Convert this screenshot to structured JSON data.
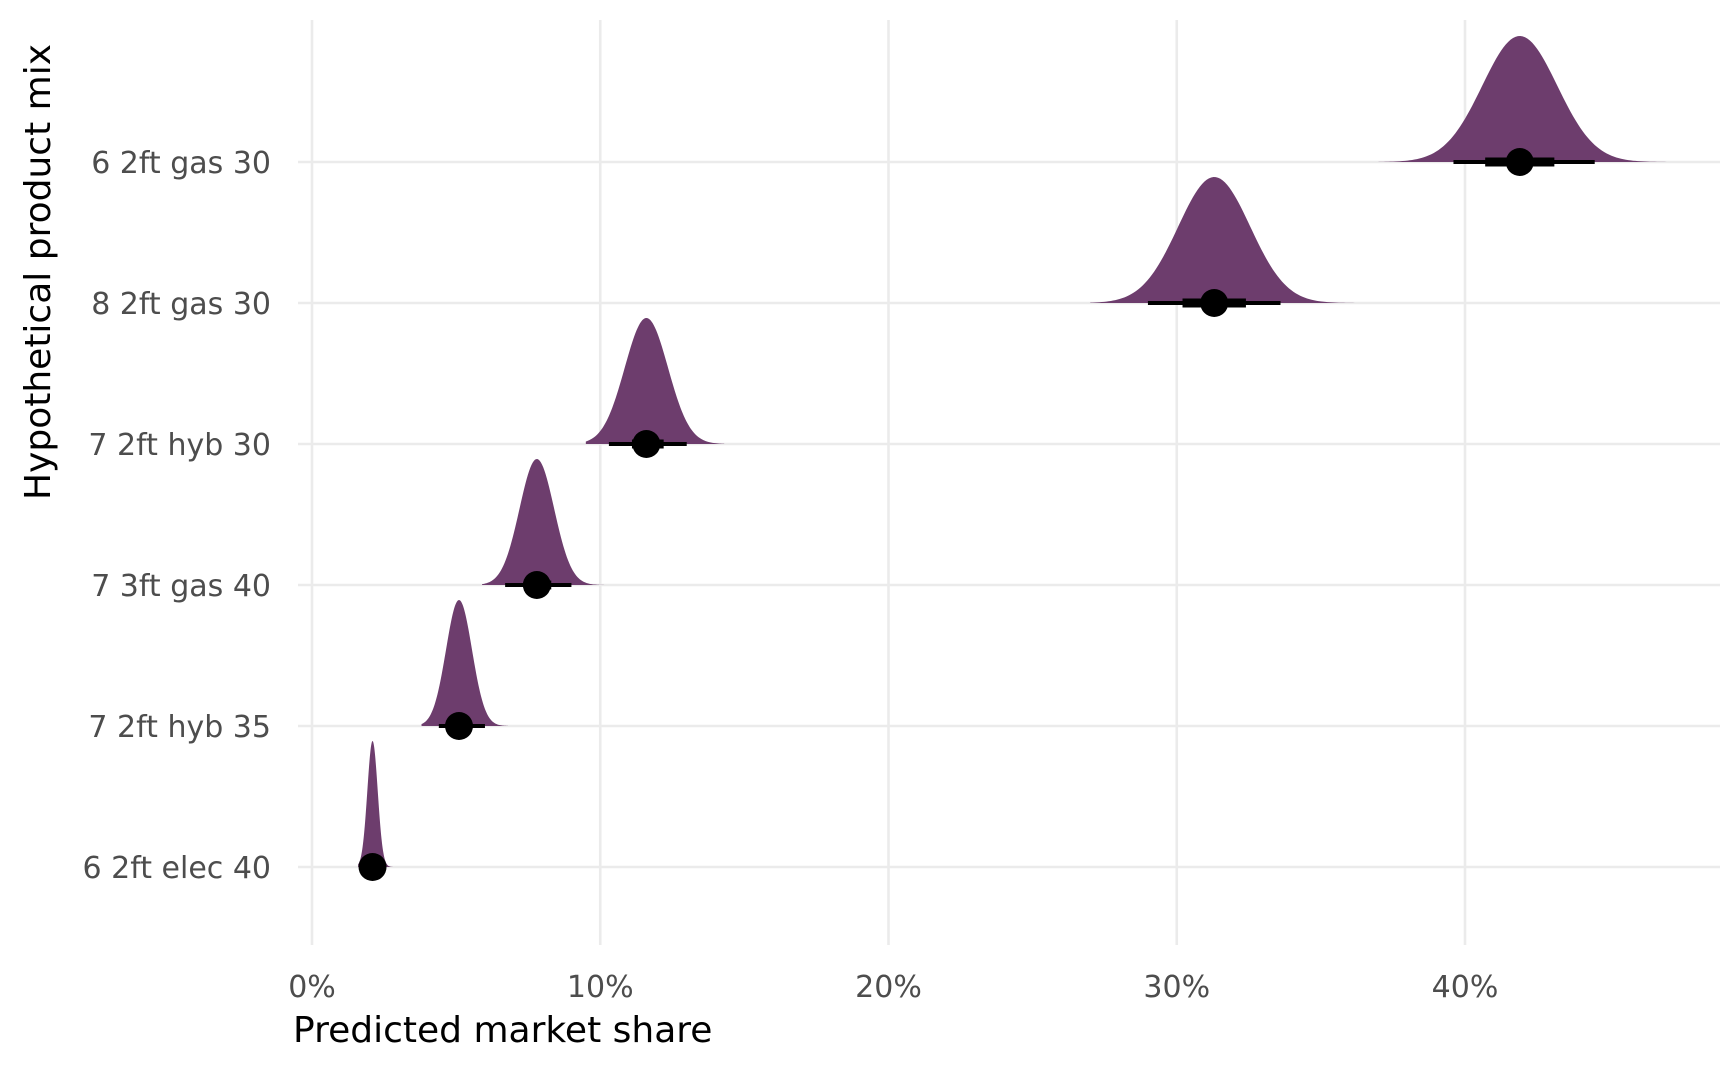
{
  "chart_data": {
    "type": "halfeye",
    "title": "",
    "xlabel": "Predicted market share",
    "ylabel": "Hypothetical product mix",
    "xlim": [
      -0.02,
      0.489
    ],
    "x_ticks": [
      0.0,
      0.1,
      0.2,
      0.3,
      0.4
    ],
    "x_tick_labels": [
      "0%",
      "10%",
      "20%",
      "30%",
      "40%"
    ],
    "categories": [
      "6 2ft gas 30",
      "8 2ft gas 30",
      "7 2ft hyb 30",
      "7 3ft gas 40",
      "7 2ft hyb 35",
      "6 2ft elec 40"
    ],
    "series": [
      {
        "category": "6 2ft gas 30",
        "median": 0.419,
        "interval_66": [
          0.407,
          0.431
        ],
        "interval_95": [
          0.396,
          0.445
        ],
        "sd": 0.013,
        "range": [
          0.37,
          0.47
        ]
      },
      {
        "category": "8 2ft gas 30",
        "median": 0.313,
        "interval_66": [
          0.302,
          0.324
        ],
        "interval_95": [
          0.29,
          0.336
        ],
        "sd": 0.0125,
        "range": [
          0.27,
          0.365
        ]
      },
      {
        "category": "7 2ft hyb 30",
        "median": 0.116,
        "interval_66": [
          0.111,
          0.122
        ],
        "interval_95": [
          0.103,
          0.13
        ],
        "sd": 0.0075,
        "range": [
          0.095,
          0.143
        ]
      },
      {
        "category": "7 3ft gas 40",
        "median": 0.078,
        "interval_66": [
          0.074,
          0.083
        ],
        "interval_95": [
          0.067,
          0.09
        ],
        "sd": 0.006,
        "range": [
          0.059,
          0.108
        ]
      },
      {
        "category": "7 2ft hyb 35",
        "median": 0.051,
        "interval_66": [
          0.048,
          0.055
        ],
        "interval_95": [
          0.044,
          0.06
        ],
        "sd": 0.0045,
        "range": [
          0.038,
          0.068
        ]
      },
      {
        "category": "6 2ft elec 40",
        "median": 0.021,
        "interval_66": [
          0.0195,
          0.022
        ],
        "interval_95": [
          0.0175,
          0.025
        ],
        "sd": 0.0018,
        "range": [
          0.016,
          0.028
        ]
      }
    ],
    "grid": true,
    "legend": "none",
    "colors": {
      "density": "#6d3d6d",
      "interval": "#000000",
      "grid": "#ebebeb",
      "tick_text": "#4d4d4d",
      "title_text": "#000000"
    }
  }
}
